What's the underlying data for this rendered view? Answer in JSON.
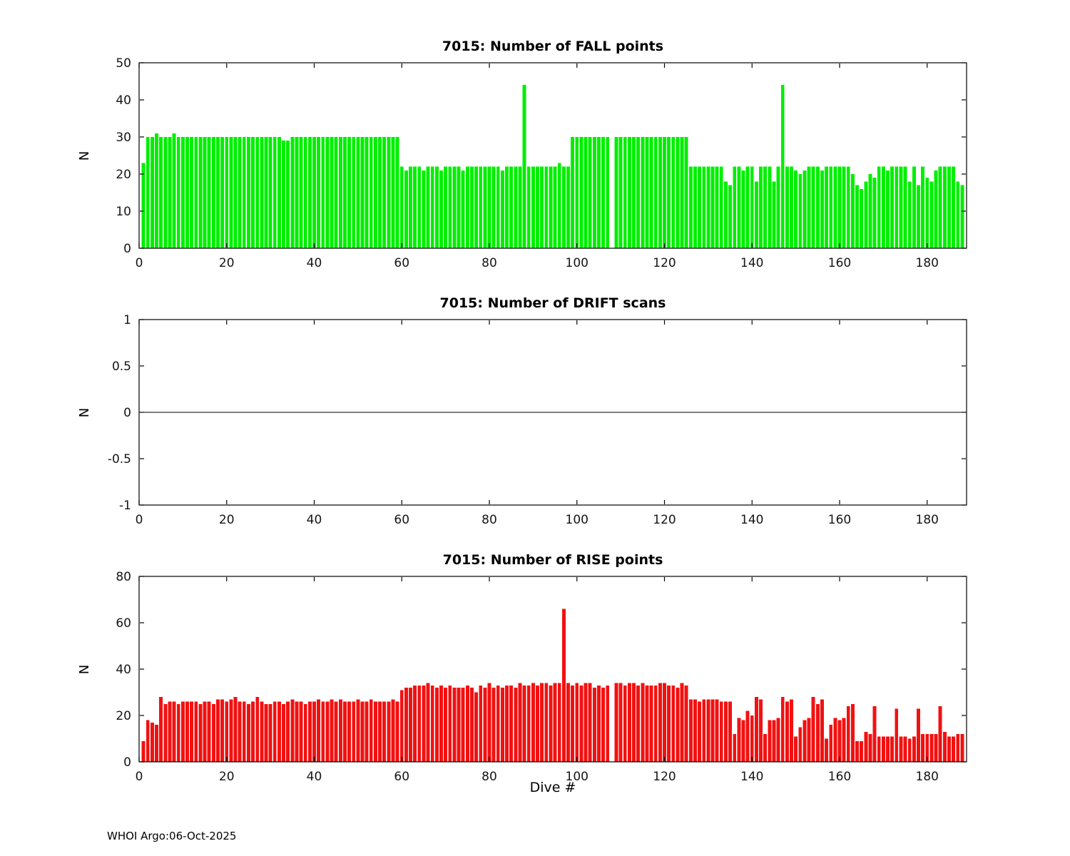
{
  "figure": {
    "footer": "WHOI Argo:06-Oct-2025"
  },
  "chart_data": [
    {
      "type": "bar",
      "title": "7015: Number of FALL points",
      "ylabel": "N",
      "xlabel": "",
      "color": "#00ef00",
      "ylim": [
        0,
        50
      ],
      "yticks": [
        0,
        10,
        20,
        30,
        40,
        50
      ],
      "xlim": [
        0,
        189
      ],
      "xticks": [
        0,
        20,
        40,
        60,
        80,
        100,
        120,
        140,
        160,
        180
      ],
      "bar_width": 0.8,
      "x_is_dive_number_starting_at": 1,
      "values": [
        23,
        30,
        30,
        31,
        30,
        30,
        30,
        31,
        30,
        30,
        30,
        30,
        30,
        30,
        30,
        30,
        30,
        30,
        30,
        30,
        30,
        30,
        30,
        30,
        30,
        30,
        30,
        30,
        30,
        30,
        30,
        30,
        29,
        29,
        30,
        30,
        30,
        30,
        30,
        30,
        30,
        30,
        30,
        30,
        30,
        30,
        30,
        30,
        30,
        30,
        30,
        30,
        30,
        30,
        30,
        30,
        30,
        30,
        30,
        22,
        21,
        22,
        22,
        22,
        21,
        22,
        22,
        22,
        21,
        22,
        22,
        22,
        22,
        21,
        22,
        22,
        22,
        22,
        22,
        22,
        22,
        22,
        21,
        22,
        22,
        22,
        22,
        44,
        22,
        22,
        22,
        22,
        22,
        22,
        22,
        23,
        22,
        22,
        30,
        30,
        30,
        30,
        30,
        30,
        30,
        30,
        30,
        0,
        30,
        30,
        30,
        30,
        30,
        30,
        30,
        30,
        30,
        30,
        30,
        30,
        30,
        30,
        30,
        30,
        30,
        22,
        22,
        22,
        22,
        22,
        22,
        22,
        22,
        18,
        17,
        22,
        22,
        21,
        22,
        22,
        18,
        22,
        22,
        22,
        18,
        22,
        44,
        22,
        22,
        21,
        20,
        21,
        22,
        22,
        22,
        21,
        22,
        22,
        22,
        22,
        22,
        22,
        20,
        17,
        16,
        18,
        20,
        19,
        22,
        22,
        21,
        22,
        22,
        22,
        22,
        18,
        22,
        17,
        22,
        19,
        18,
        21,
        22,
        22,
        22,
        22,
        18,
        17
      ]
    },
    {
      "type": "line",
      "title": "7015: Number of DRIFT scans",
      "ylabel": "N",
      "xlabel": "",
      "color": "#000000",
      "ylim": [
        -1,
        1
      ],
      "yticks": [
        -1,
        -0.5,
        0,
        0.5,
        1
      ],
      "xlim": [
        0,
        189
      ],
      "xticks": [
        0,
        20,
        40,
        60,
        80,
        100,
        120,
        140,
        160,
        180
      ],
      "zero_line": true,
      "values": []
    },
    {
      "type": "bar",
      "title": "7015: Number of RISE points",
      "ylabel": "N",
      "xlabel": "Dive #",
      "color": "#f21111",
      "ylim": [
        0,
        80
      ],
      "yticks": [
        0,
        20,
        40,
        60,
        80
      ],
      "xlim": [
        0,
        189
      ],
      "xticks": [
        0,
        20,
        40,
        60,
        80,
        100,
        120,
        140,
        160,
        180
      ],
      "bar_width": 0.8,
      "x_is_dive_number_starting_at": 1,
      "values": [
        9,
        18,
        17,
        16,
        28,
        25,
        26,
        26,
        25,
        26,
        26,
        26,
        26,
        25,
        26,
        26,
        25,
        27,
        27,
        26,
        27,
        28,
        26,
        26,
        25,
        26,
        28,
        26,
        25,
        25,
        26,
        26,
        25,
        26,
        27,
        26,
        26,
        25,
        26,
        26,
        27,
        26,
        26,
        27,
        26,
        27,
        26,
        26,
        26,
        27,
        26,
        26,
        27,
        26,
        26,
        26,
        26,
        27,
        26,
        31,
        32,
        32,
        33,
        33,
        33,
        34,
        33,
        32,
        33,
        32,
        33,
        32,
        32,
        32,
        33,
        32,
        30,
        33,
        32,
        34,
        32,
        33,
        32,
        33,
        33,
        32,
        34,
        33,
        33,
        34,
        33,
        34,
        34,
        33,
        34,
        34,
        66,
        34,
        33,
        34,
        33,
        34,
        34,
        32,
        33,
        32,
        33,
        0,
        34,
        34,
        33,
        34,
        34,
        33,
        34,
        33,
        33,
        33,
        34,
        34,
        33,
        33,
        32,
        34,
        33,
        27,
        27,
        26,
        27,
        27,
        27,
        27,
        26,
        26,
        26,
        12,
        19,
        18,
        22,
        20,
        28,
        27,
        12,
        18,
        18,
        19,
        28,
        26,
        27,
        11,
        15,
        18,
        19,
        28,
        25,
        27,
        10,
        16,
        19,
        18,
        19,
        24,
        25,
        9,
        9,
        13,
        12,
        24,
        11,
        11,
        11,
        11,
        23,
        11,
        11,
        10,
        11,
        23,
        12,
        12,
        12,
        12,
        24,
        13,
        11,
        11,
        12,
        12
      ]
    }
  ]
}
